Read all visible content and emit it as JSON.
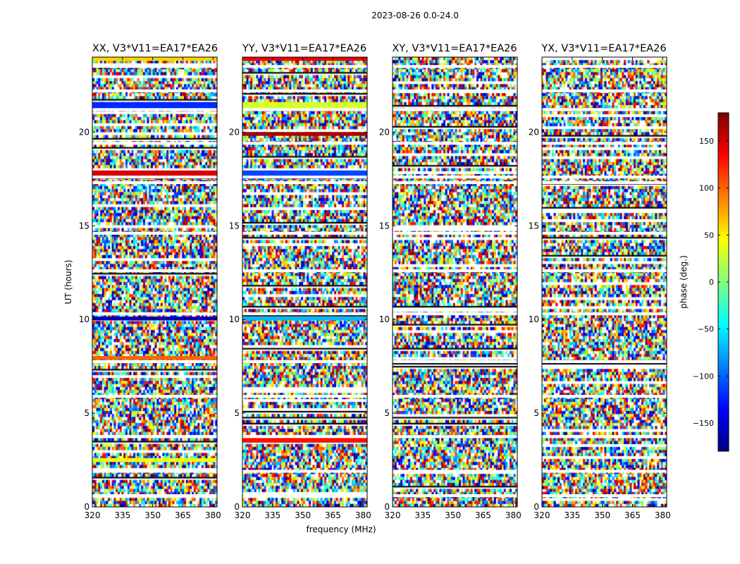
{
  "figure": {
    "suptitle": "2023-08-26 0.0-24.0"
  },
  "chart_data": {
    "type": "heatmap",
    "title": "2023-08-26 0.0-24.0",
    "xlabel": "frequency (MHz)",
    "ylabel": "UT (hours)",
    "xlim": [
      320,
      382
    ],
    "ylim": [
      0,
      24
    ],
    "x_ticks": [
      320,
      335,
      350,
      365,
      380
    ],
    "y_ticks": [
      0,
      5,
      10,
      15,
      20
    ],
    "colormap": "jet",
    "colorbar": {
      "label": "phase (deg.)",
      "range": [
        -180,
        180
      ],
      "ticks": [
        -150,
        -100,
        -50,
        0,
        50,
        100,
        150
      ],
      "tick_labels": [
        "−150",
        "−100",
        "−50",
        "0",
        "50",
        "100",
        "150"
      ]
    },
    "panels": [
      {
        "title": "XX, V3*V11=EA17*EA26",
        "polarization": "XX"
      },
      {
        "title": "YY, V3*V11=EA17*EA26",
        "polarization": "YY"
      },
      {
        "title": "XY, V3*V11=EA17*EA26",
        "polarization": "XY"
      },
      {
        "title": "YX, V3*V11=EA17*EA26",
        "polarization": "YX"
      }
    ],
    "gap_rows_hours": [
      0.6,
      1.9,
      3.75,
      5.9,
      7.75,
      10.3,
      12.6,
      14.6,
      17.3,
      17.6,
      19.4,
      21.2,
      22.2,
      23.5
    ],
    "coherent_bands": [
      {
        "panel": "XX",
        "t0": 23.8,
        "t1": 24.0,
        "phase": 60
      },
      {
        "panel": "XX",
        "t0": 21.2,
        "t1": 21.6,
        "phase": -120
      },
      {
        "panel": "XX",
        "t0": 17.5,
        "t1": 17.95,
        "phase": 150
      },
      {
        "panel": "XX",
        "t0": 9.95,
        "t1": 10.15,
        "phase": -160
      },
      {
        "panel": "XX",
        "t0": 7.85,
        "t1": 8.05,
        "phase": 100
      },
      {
        "panel": "XX",
        "t0": 2.4,
        "t1": 2.6,
        "phase": 40
      },
      {
        "panel": "YY",
        "t0": 23.8,
        "t1": 24.0,
        "phase": 140
      },
      {
        "panel": "YY",
        "t0": 21.2,
        "t1": 21.6,
        "phase": 30
      },
      {
        "panel": "YY",
        "t0": 19.8,
        "t1": 20.0,
        "phase": 165
      },
      {
        "panel": "YY",
        "t0": 17.5,
        "t1": 17.95,
        "phase": -110
      },
      {
        "panel": "YY",
        "t0": 9.95,
        "t1": 10.15,
        "phase": -70
      },
      {
        "panel": "YY",
        "t0": 3.45,
        "t1": 3.7,
        "phase": 130
      }
    ]
  }
}
